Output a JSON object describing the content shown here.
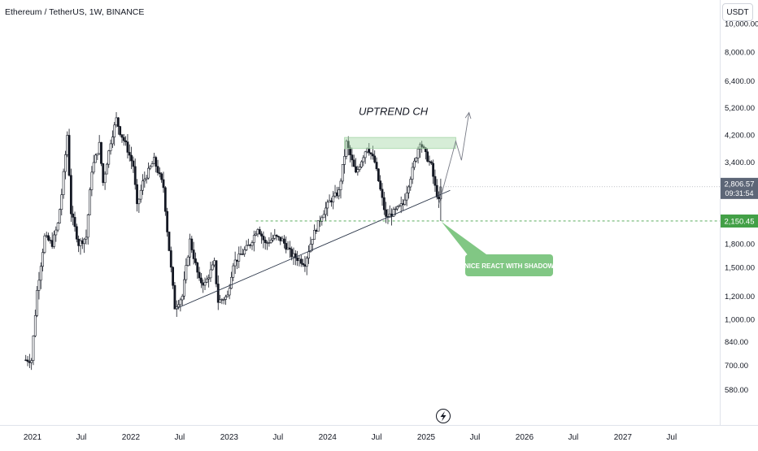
{
  "header": {
    "symbol_title": "Ethereum / TetherUS, 1W, BINANCE",
    "currency": "USDT"
  },
  "colors": {
    "up": "#26a69a",
    "candle": "#131722",
    "trendline": "#2a3548",
    "zone": "#a5d6a7",
    "support_line": "#43a047",
    "label_green": "#81c784",
    "price_tag_dark": "#5d6677",
    "price_tag_green": "#43a047"
  },
  "chart_data": {
    "type": "candlestick",
    "title": "Ethereum / TetherUS, 1W, BINANCE",
    "y_scale": "log",
    "ylim": [
      440,
      12000
    ],
    "x_tick_labels": [
      "2021",
      "Jul",
      "2022",
      "Jul",
      "2023",
      "Jul",
      "2024",
      "Jul",
      "2025",
      "Jul",
      "2026",
      "Jul",
      "2027",
      "Jul"
    ],
    "y_tick_labels": [
      "10,000.00",
      "8,000.00",
      "6,400.00",
      "5,200.00",
      "4,200.00",
      "3,400.00",
      "1,800.00",
      "1,500.00",
      "1,200.00",
      "1,000.00",
      "840.00",
      "700.00",
      "580.00"
    ],
    "y_tick_values": [
      10000,
      8000,
      6400,
      5200,
      4200,
      3400,
      1800,
      1500,
      1200,
      1000,
      840,
      700,
      580
    ],
    "current_price": "2,806.57",
    "current_price_value": 2806.57,
    "countdown": "09:31:54",
    "support_price": "2,150.45",
    "support_value": 2150.45,
    "annotations": {
      "channel_label": "UPTREND CH",
      "reaction_label": "NICE REACT WITH SHADOW"
    },
    "resistance_zone": [
      3780,
      4120
    ],
    "trendline": {
      "start": [
        "2022-06-20",
        1090
      ],
      "end": [
        "2025-03-31",
        2730
      ]
    },
    "projection": [
      [
        "2025-02-17",
        2450
      ],
      [
        "2025-04-21",
        4000
      ],
      [
        "2025-05-12",
        3450
      ],
      [
        "2025-06-09",
        5000
      ]
    ],
    "price_points": [
      [
        "2020-12-28",
        730
      ],
      [
        "2021-01-18",
        1250
      ],
      [
        "2021-02-15",
        1900
      ],
      [
        "2021-03-15",
        1800
      ],
      [
        "2021-04-05",
        2100
      ],
      [
        "2021-04-19",
        2650
      ],
      [
        "2021-05-10",
        4200
      ],
      [
        "2021-05-24",
        2300
      ],
      [
        "2021-06-21",
        1800
      ],
      [
        "2021-07-19",
        1900
      ],
      [
        "2021-08-09",
        3200
      ],
      [
        "2021-09-06",
        3900
      ],
      [
        "2021-09-20",
        2900
      ],
      [
        "2021-10-18",
        4000
      ],
      [
        "2021-11-08",
        4750
      ],
      [
        "2021-11-22",
        4300
      ],
      [
        "2021-12-13",
        3900
      ],
      [
        "2022-01-10",
        3300
      ],
      [
        "2022-01-24",
        2400
      ],
      [
        "2022-02-14",
        2900
      ],
      [
        "2022-03-28",
        3450
      ],
      [
        "2022-05-02",
        2800
      ],
      [
        "2022-05-16",
        2000
      ],
      [
        "2022-06-13",
        1100
      ],
      [
        "2022-07-11",
        1200
      ],
      [
        "2022-08-08",
        1850
      ],
      [
        "2022-09-12",
        1350
      ],
      [
        "2022-10-03",
        1320
      ],
      [
        "2022-11-07",
        1550
      ],
      [
        "2022-11-21",
        1150
      ],
      [
        "2022-12-26",
        1200
      ],
      [
        "2023-01-16",
        1550
      ],
      [
        "2023-02-13",
        1650
      ],
      [
        "2023-03-20",
        1800
      ],
      [
        "2023-04-17",
        2050
      ],
      [
        "2023-05-15",
        1800
      ],
      [
        "2023-06-19",
        1900
      ],
      [
        "2023-07-17",
        1850
      ],
      [
        "2023-08-21",
        1650
      ],
      [
        "2023-10-09",
        1550
      ],
      [
        "2023-11-06",
        1900
      ],
      [
        "2023-12-11",
        2250
      ],
      [
        "2024-01-08",
        2500
      ],
      [
        "2024-02-12",
        2700
      ],
      [
        "2024-03-11",
        3950
      ],
      [
        "2024-04-15",
        3100
      ],
      [
        "2024-05-27",
        3850
      ],
      [
        "2024-06-24",
        3400
      ],
      [
        "2024-08-05",
        2200
      ],
      [
        "2024-09-02",
        2300
      ],
      [
        "2024-10-07",
        2450
      ],
      [
        "2024-11-11",
        3200
      ],
      [
        "2024-12-09",
        4000
      ],
      [
        "2024-12-30",
        3600
      ],
      [
        "2025-01-20",
        3300
      ],
      [
        "2025-02-03",
        2800
      ],
      [
        "2025-02-17",
        2500
      ],
      [
        "2025-02-24",
        2806.57
      ]
    ]
  }
}
